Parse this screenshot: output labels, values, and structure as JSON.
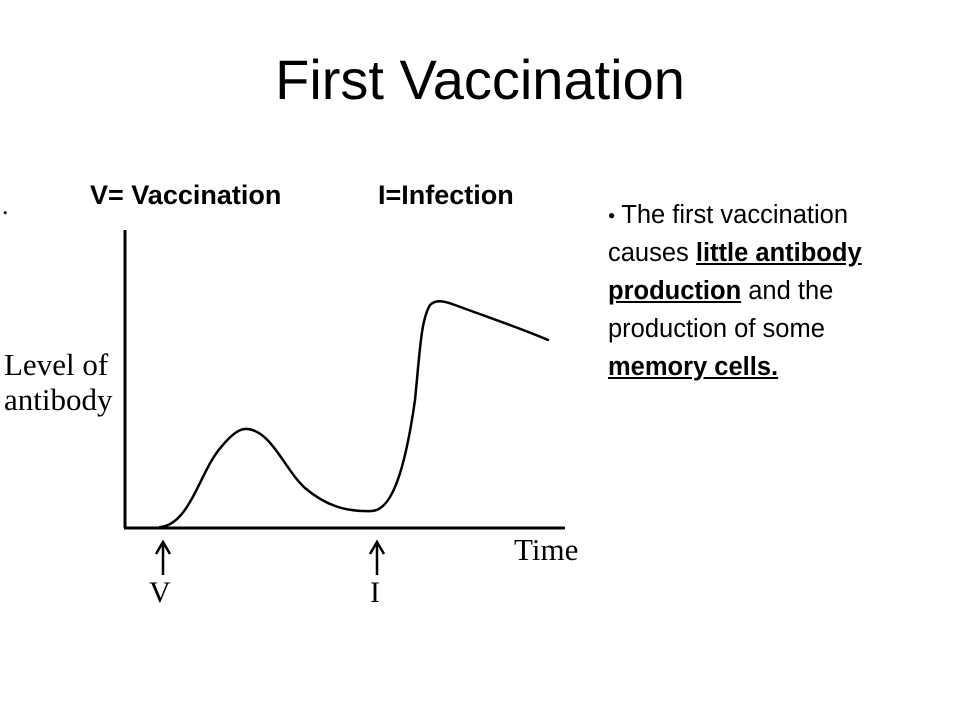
{
  "slide": {
    "title": "First Vaccination"
  },
  "legend": {
    "vaccination": "V= Vaccination",
    "infection": "I=Infection"
  },
  "bullet": {
    "intro": "The first vaccination causes",
    "highlight1": "little antibody production",
    "middle": "and the production of some",
    "highlight2": "memory cells."
  },
  "graph": {
    "y_label_line1": "Level of",
    "y_label_line2": "antibody",
    "x_label": "Time",
    "marker_v": "V",
    "marker_i": "I",
    "stray_mark": "."
  }
}
